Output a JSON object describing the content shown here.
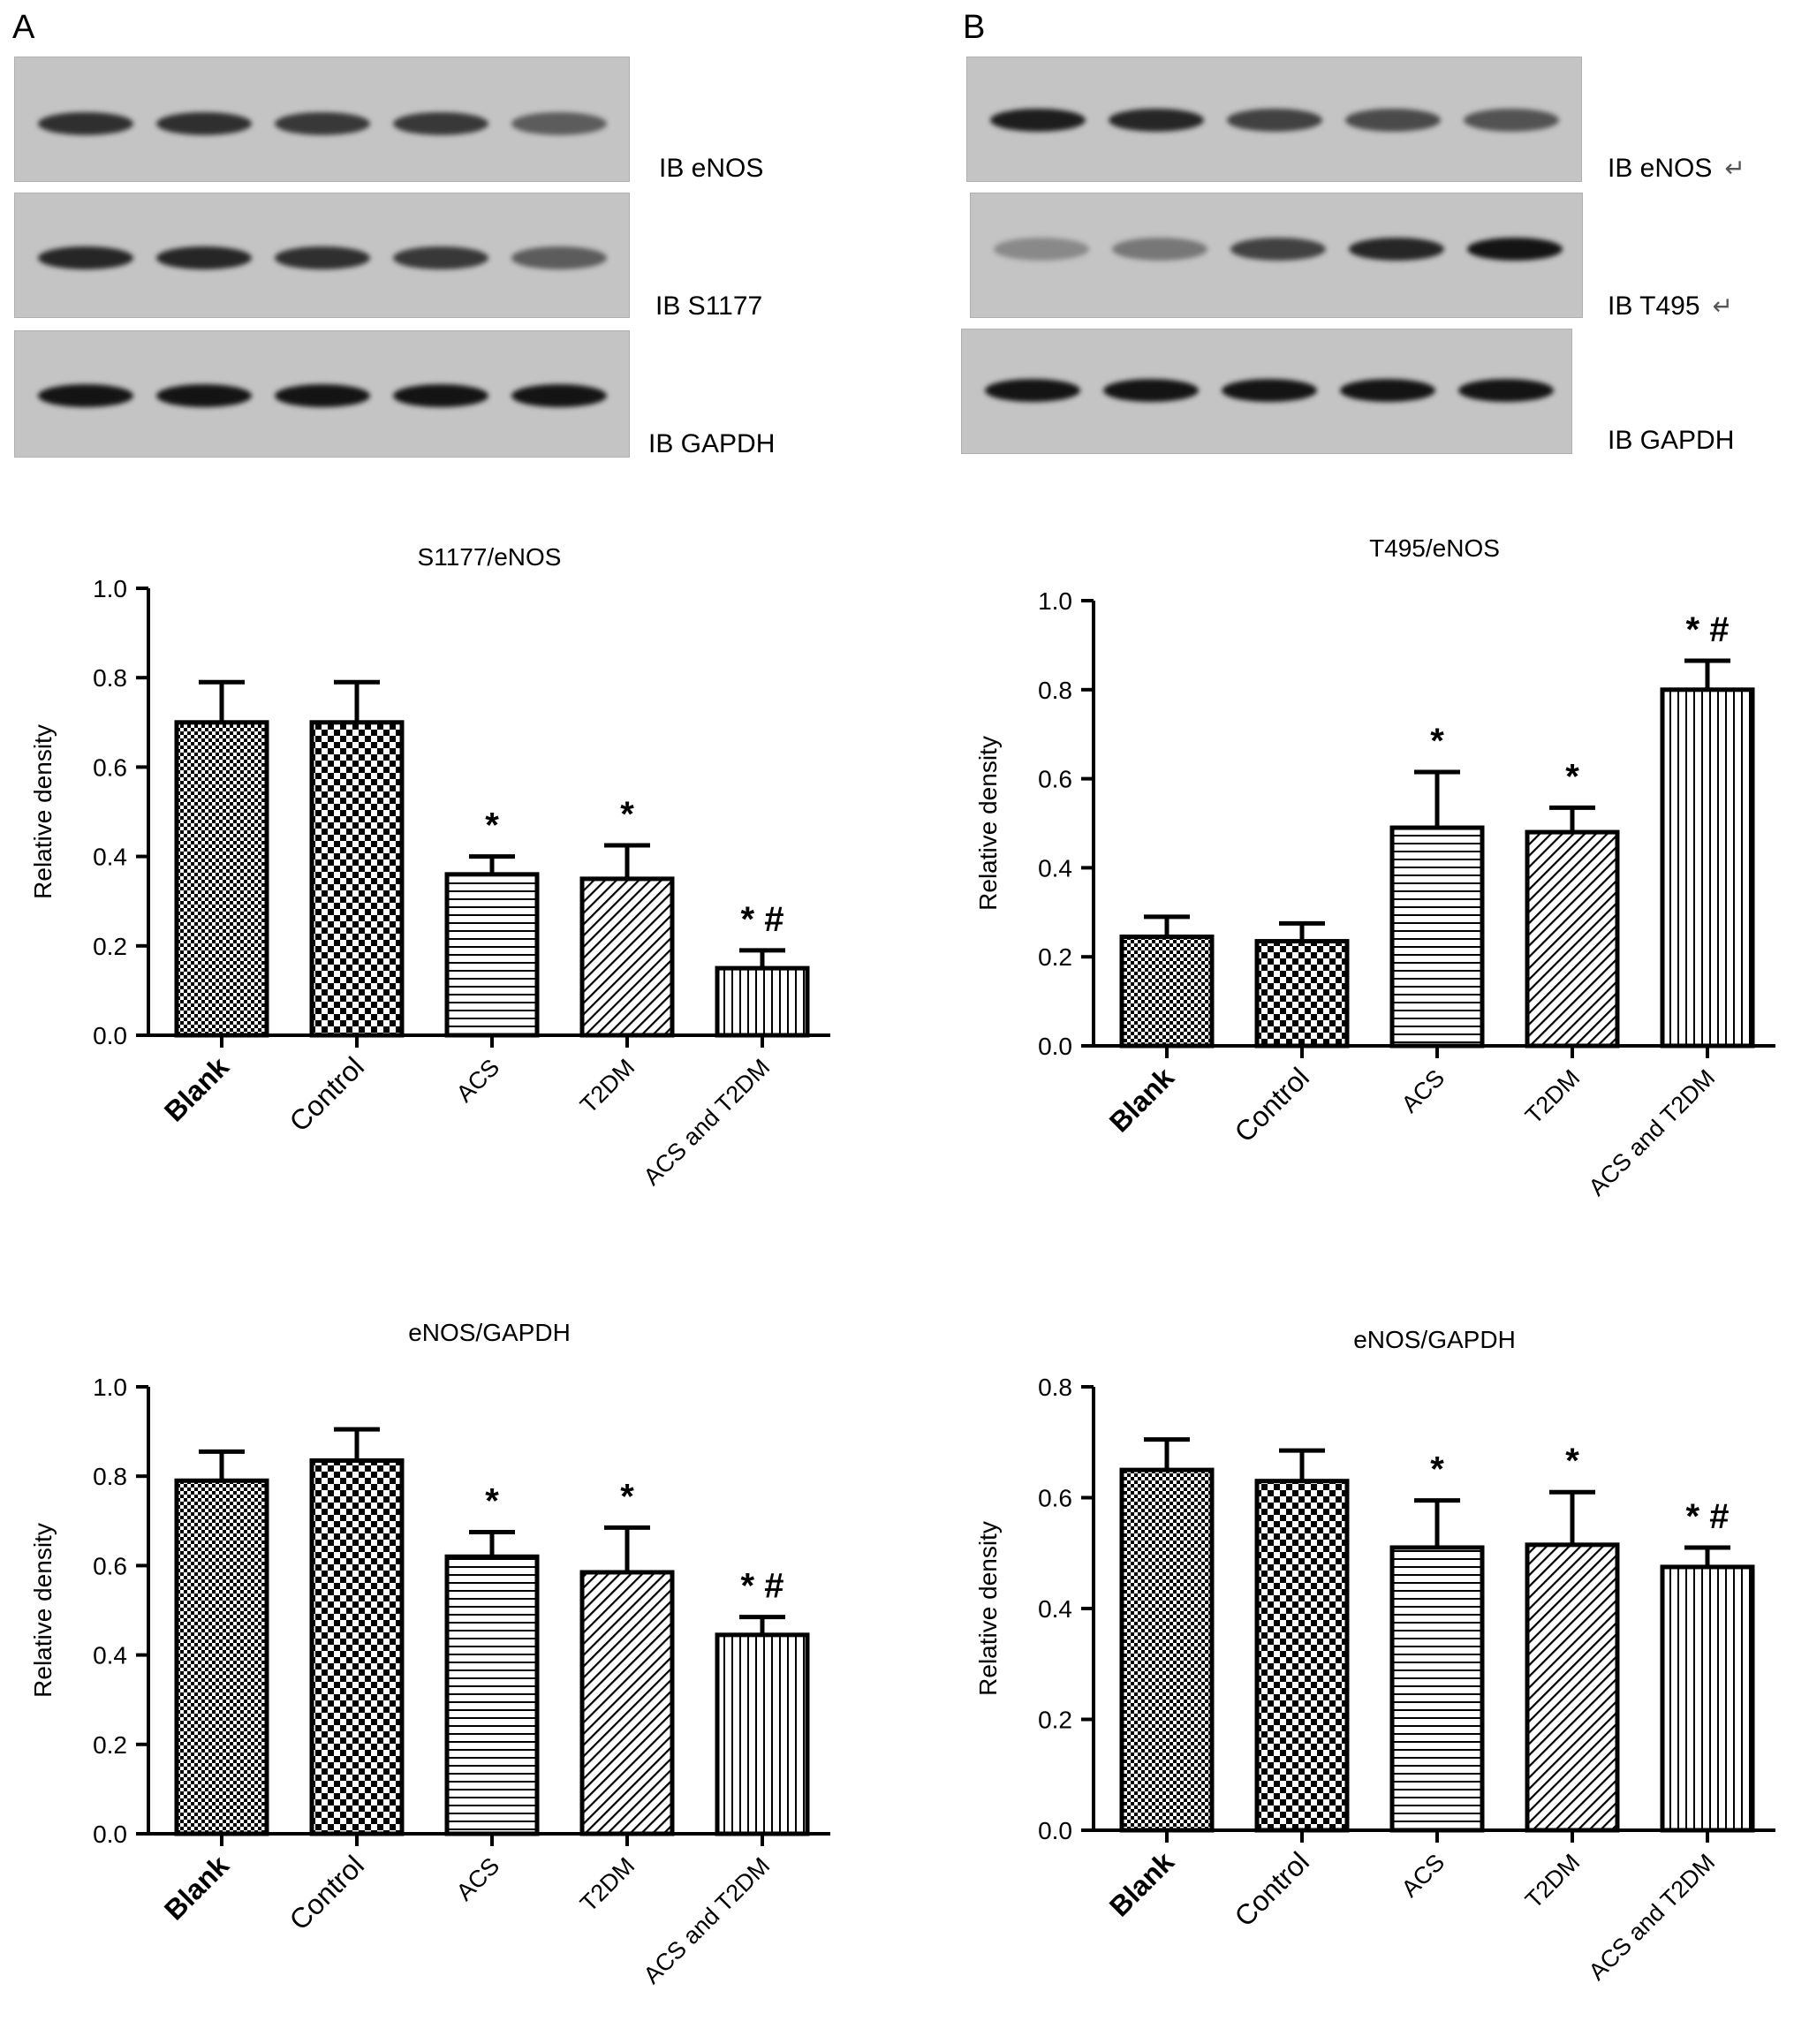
{
  "panels": {
    "A": {
      "letter": "A",
      "blot_labels": [
        "IB eNOS",
        "IB S1177",
        "IB GAPDH"
      ]
    },
    "B": {
      "letter": "B",
      "blot_labels": [
        "IB eNOS",
        "IB T495",
        "IB GAPDH"
      ],
      "return_marks": [
        "↵",
        "↵"
      ]
    }
  },
  "chart_data": [
    {
      "type": "bar",
      "title": "S1177/eNOS",
      "ylabel": "Relative density",
      "ylim": [
        0,
        1.0
      ],
      "ticks": [
        "0.0",
        "0.2",
        "0.4",
        "0.6",
        "0.8",
        "1.0"
      ],
      "categories": [
        "Blank",
        "Control",
        "ACS",
        "T2DM",
        "ACS and T2DM"
      ],
      "values": [
        0.7,
        0.7,
        0.36,
        0.35,
        0.15
      ],
      "errors": [
        0.09,
        0.09,
        0.04,
        0.075,
        0.04
      ],
      "markers": [
        "",
        "",
        "*",
        "*",
        "* #"
      ]
    },
    {
      "type": "bar",
      "title": "T495/eNOS",
      "ylabel": "Relative density",
      "ylim": [
        0,
        1.0
      ],
      "ticks": [
        "0.0",
        "0.2",
        "0.4",
        "0.6",
        "0.8",
        "1.0"
      ],
      "categories": [
        "Blank",
        "Control",
        "ACS",
        "T2DM",
        "ACS and T2DM"
      ],
      "values": [
        0.245,
        0.235,
        0.49,
        0.48,
        0.8
      ],
      "errors": [
        0.045,
        0.04,
        0.125,
        0.055,
        0.065
      ],
      "markers": [
        "",
        "",
        "*",
        "*",
        "* #"
      ]
    },
    {
      "type": "bar",
      "title": "eNOS/GAPDH",
      "ylabel": "Relative density",
      "ylim": [
        0,
        1.0
      ],
      "ticks": [
        "0.0",
        "0.2",
        "0.4",
        "0.6",
        "0.8",
        "1.0"
      ],
      "categories": [
        "Blank",
        "Control",
        "ACS",
        "T2DM",
        "ACS and T2DM"
      ],
      "values": [
        0.79,
        0.835,
        0.62,
        0.585,
        0.445
      ],
      "errors": [
        0.065,
        0.07,
        0.055,
        0.1,
        0.04
      ],
      "markers": [
        "",
        "",
        "*",
        "*",
        "* #"
      ]
    },
    {
      "type": "bar",
      "title": "eNOS/GAPDH",
      "ylabel": "Relative density",
      "ylim": [
        0,
        0.8
      ],
      "ticks": [
        "0.0",
        "0.2",
        "0.4",
        "0.6",
        "0.8"
      ],
      "categories": [
        "Blank",
        "Control",
        "ACS",
        "T2DM",
        "ACS and T2DM"
      ],
      "values": [
        0.65,
        0.63,
        0.51,
        0.515,
        0.475
      ],
      "errors": [
        0.055,
        0.055,
        0.085,
        0.095,
        0.035
      ],
      "markers": [
        "",
        "",
        "*",
        "*",
        "* #"
      ]
    }
  ]
}
